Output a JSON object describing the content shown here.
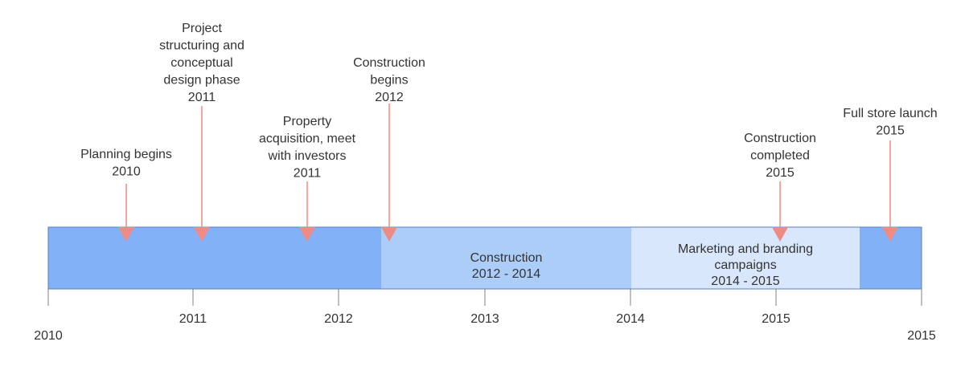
{
  "timeline": {
    "colors": {
      "bar_dark": "#82b1f7",
      "bar_mid": "#adcdf9",
      "bar_light": "#d9e7fc",
      "marker": "#f08a84",
      "axis": "#808080",
      "text": "#333333"
    },
    "axis_labels": [
      "2010",
      "2011",
      "2012",
      "2013",
      "2014",
      "2015",
      "2015"
    ],
    "phases": [
      {
        "label_lines": [],
        "color": "dark"
      },
      {
        "label_lines": [
          "Construction",
          "2012 - 2014"
        ],
        "color": "mid"
      },
      {
        "label_lines": [
          "Marketing and branding",
          "campaigns",
          "2014 - 2015"
        ],
        "color": "light"
      },
      {
        "label_lines": [],
        "color": "dark"
      }
    ],
    "milestones": [
      {
        "label_lines": [
          "Planning begins",
          "2010"
        ]
      },
      {
        "label_lines": [
          "Project",
          "structuring and",
          "conceptual",
          "design phase",
          "2011"
        ]
      },
      {
        "label_lines": [
          "Property",
          "acquisition, meet",
          "with investors",
          "2011"
        ]
      },
      {
        "label_lines": [
          "Construction",
          "begins",
          "2012"
        ]
      },
      {
        "label_lines": [
          "Construction",
          "completed",
          "2015"
        ]
      },
      {
        "label_lines": [
          "Full store launch",
          "2015"
        ]
      }
    ]
  }
}
